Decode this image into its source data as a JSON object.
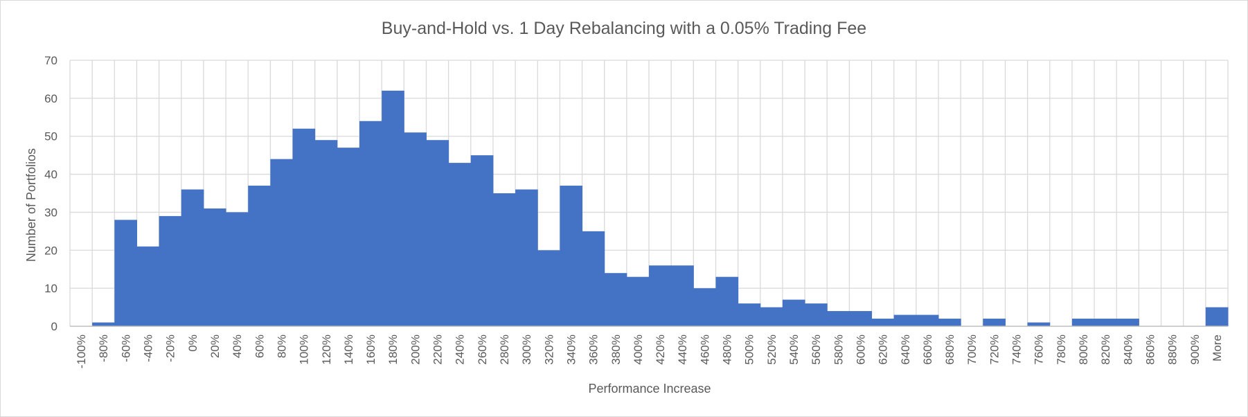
{
  "chart_data": {
    "type": "bar",
    "title": "Buy-and-Hold vs. 1 Day Rebalancing with a 0.05% Trading Fee",
    "xlabel": "Performance Increase",
    "ylabel": "Number of Portfolios",
    "ylim": [
      0,
      70
    ],
    "yticks": [
      0,
      10,
      20,
      30,
      40,
      50,
      60,
      70
    ],
    "grid": true,
    "legend": "none",
    "bar_color": "#4472C4",
    "categories": [
      "-100%",
      "-80%",
      "-60%",
      "-40%",
      "-20%",
      "0%",
      "20%",
      "40%",
      "60%",
      "80%",
      "100%",
      "120%",
      "140%",
      "160%",
      "180%",
      "200%",
      "220%",
      "240%",
      "260%",
      "280%",
      "300%",
      "320%",
      "340%",
      "360%",
      "380%",
      "400%",
      "420%",
      "440%",
      "460%",
      "480%",
      "500%",
      "520%",
      "540%",
      "560%",
      "580%",
      "600%",
      "620%",
      "640%",
      "660%",
      "680%",
      "700%",
      "720%",
      "740%",
      "760%",
      "780%",
      "800%",
      "820%",
      "840%",
      "860%",
      "880%",
      "900%",
      "More"
    ],
    "values": [
      0,
      1,
      28,
      21,
      29,
      36,
      31,
      30,
      37,
      44,
      52,
      49,
      47,
      54,
      62,
      51,
      49,
      43,
      45,
      35,
      36,
      20,
      37,
      25,
      14,
      13,
      16,
      16,
      10,
      13,
      6,
      5,
      7,
      6,
      4,
      4,
      2,
      3,
      3,
      2,
      0,
      2,
      0,
      1,
      0,
      2,
      2,
      2,
      0,
      0,
      0,
      5
    ]
  }
}
